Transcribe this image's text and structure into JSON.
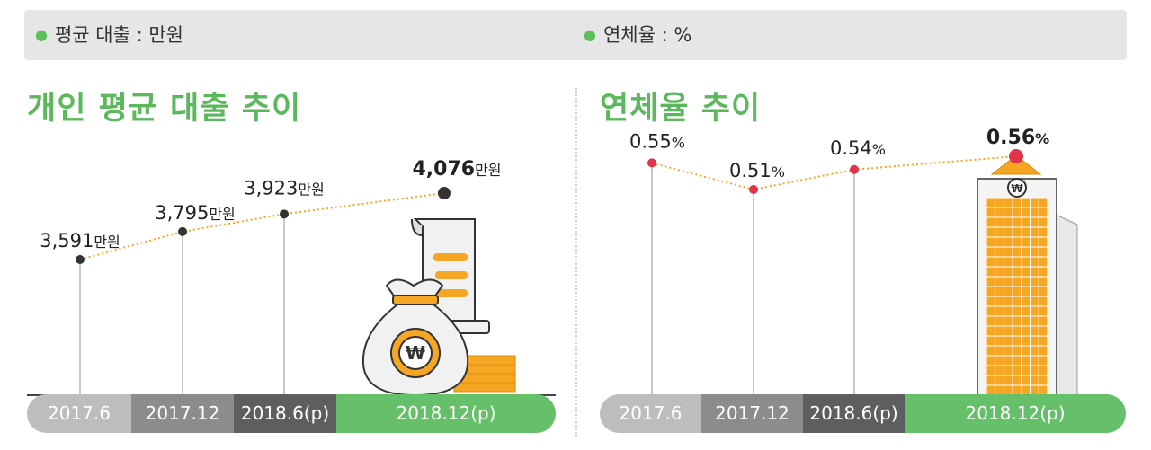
{
  "legend": {
    "loan_unit": "평균 대출 : 만원",
    "delinquency_unit": "연체율 : %"
  },
  "titles": {
    "loan": "개인 평균 대출 추이",
    "delinquency": "연체율 추이"
  },
  "periods": [
    "2017.6",
    "2017.12",
    "2018.6(p)",
    "2018.12(p)"
  ],
  "colors": {
    "accent": "#5cb85c",
    "line": "#f5a623",
    "delinquency_dot": "#e0344b",
    "loan_dot": "#333333",
    "seg1": "#bdbdbd",
    "seg2": "#8c8c8c",
    "seg3": "#5e5e5e",
    "seg4": "#66c06a"
  },
  "chart_data": [
    {
      "type": "line",
      "title": "개인 평균 대출 추이",
      "categories": [
        "2017.6",
        "2017.12",
        "2018.6(p)",
        "2018.12(p)"
      ],
      "unit": "만원",
      "values": [
        3591,
        3795,
        3923,
        4076
      ],
      "labels": [
        "3,591",
        "3,795",
        "3,923",
        "4,076"
      ],
      "highlight_last": true,
      "illustration": "money-bag-coins-receipt"
    },
    {
      "type": "line",
      "title": "연체율 추이",
      "categories": [
        "2017.6",
        "2017.12",
        "2018.6(p)",
        "2018.12(p)"
      ],
      "unit": "%",
      "values": [
        0.55,
        0.51,
        0.54,
        0.56
      ],
      "labels": [
        "0.55",
        "0.51",
        "0.54",
        "0.56"
      ],
      "highlight_last": true,
      "illustration": "bank-building"
    }
  ]
}
